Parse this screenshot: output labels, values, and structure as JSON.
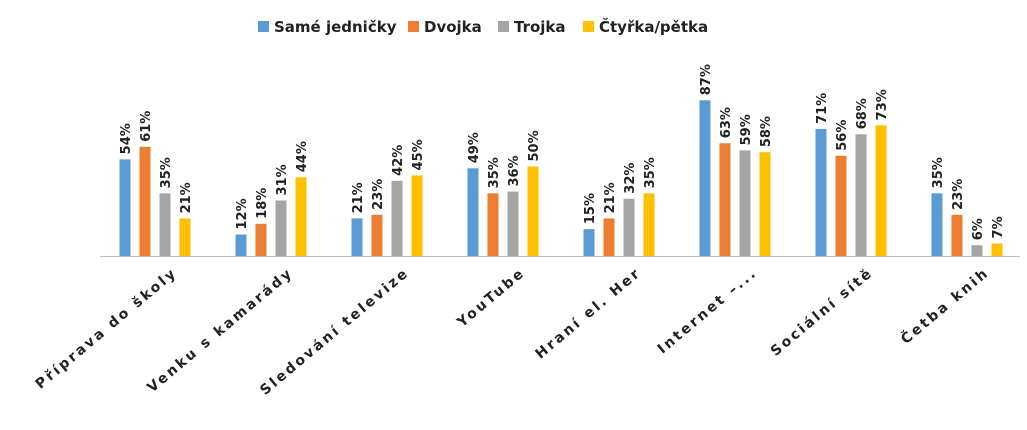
{
  "chart_data": {
    "type": "bar",
    "categories": [
      "Příprava do školy",
      "Venku s kamarády",
      "Sledování televize",
      "YouTube",
      "Hraní el. Her",
      "Internet –...",
      "Sociální sítě",
      "Četba knih"
    ],
    "series": [
      {
        "name": "Samé jedničky",
        "color": "#5b9bd5",
        "values": [
          54,
          12,
          21,
          49,
          15,
          87,
          71,
          35
        ],
        "value_labels": [
          "54%",
          "12%",
          "21%",
          "49%",
          "15%",
          "87%",
          "71%",
          "35%"
        ]
      },
      {
        "name": "Dvojka",
        "color": "#ed7d31",
        "values": [
          61,
          18,
          23,
          35,
          21,
          63,
          56,
          23
        ],
        "value_labels": [
          "61%",
          "18%",
          "23%",
          "35%",
          "21%",
          "63%",
          "56%",
          "23%"
        ]
      },
      {
        "name": "Trojka",
        "color": "#a5a5a5",
        "values": [
          35,
          31,
          42,
          36,
          32,
          59,
          68,
          6
        ],
        "value_labels": [
          "35%",
          "31%",
          "42%",
          "36%",
          "32%",
          "59%",
          "68%",
          "6%"
        ]
      },
      {
        "name": "Čtyřka/pětka",
        "color": "#ffc000",
        "values": [
          21,
          44,
          45,
          50,
          35,
          58,
          73,
          7
        ],
        "value_labels": [
          "21%",
          "44%",
          "45%",
          "50%",
          "35%",
          "58%",
          "73%",
          "7%"
        ]
      }
    ],
    "legend": "top"
  }
}
